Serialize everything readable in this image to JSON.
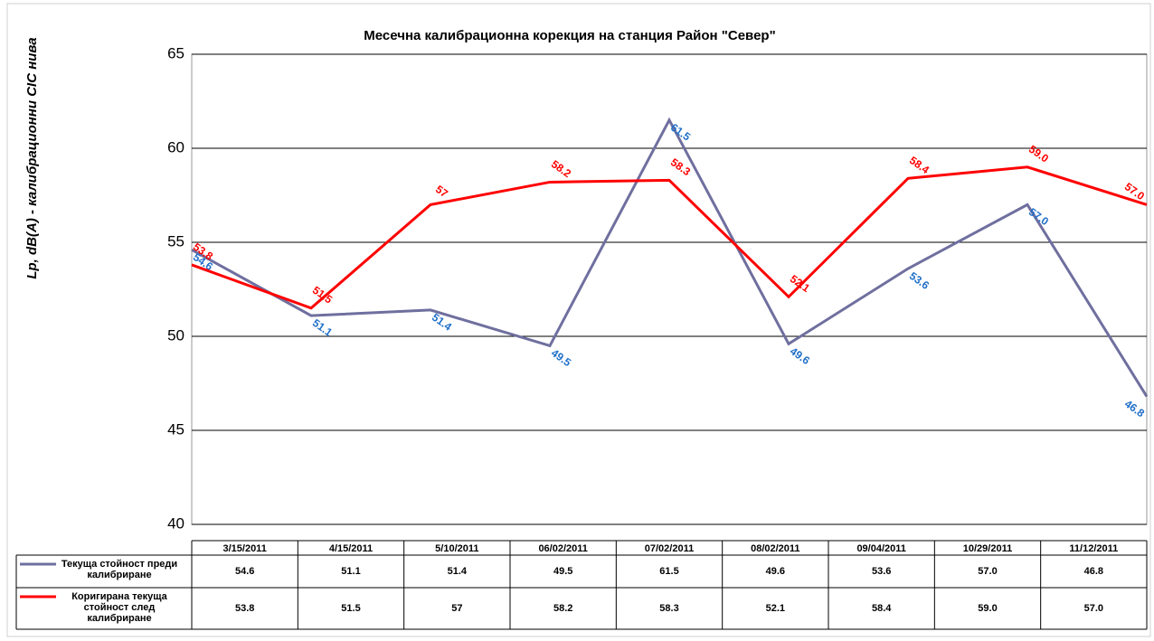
{
  "chart_data": {
    "type": "line",
    "title": "Месечна калибрационна  корекция на станция Район \"Север\"",
    "y_label": "Lp, dB(A) - калибрационни СІС нива",
    "categories": [
      "3/15/2011",
      "4/15/2011",
      "5/10/2011",
      "06/02/2011",
      "07/02/2011",
      "08/02/2011",
      "09/04/2011",
      "10/29/2011",
      "11/12/2011"
    ],
    "series": [
      {
        "name": "Текуща стойност преди калибриране",
        "color": "#6f6f9f",
        "values": [
          54.6,
          51.1,
          51.4,
          49.5,
          61.5,
          49.6,
          53.6,
          57.0,
          46.8
        ],
        "value_labels": [
          "54.6",
          "51.1",
          "51.4",
          "49.5",
          "61.5",
          "49.6",
          "53.6",
          "57.0",
          "46.8"
        ]
      },
      {
        "name": "Коригирана текуща стойност след калибриране",
        "color": "#ff0000",
        "values": [
          53.8,
          51.5,
          57,
          58.2,
          58.3,
          52.1,
          58.4,
          59.0,
          57.0
        ],
        "value_labels": [
          "53.8",
          "51.5",
          "57",
          "58.2",
          "58.3",
          "52.1",
          "58.4",
          "59.0",
          "57.0"
        ]
      }
    ],
    "ylim": [
      40,
      65
    ],
    "yticks": [
      40,
      45,
      50,
      55,
      60,
      65
    ],
    "grid": true
  }
}
